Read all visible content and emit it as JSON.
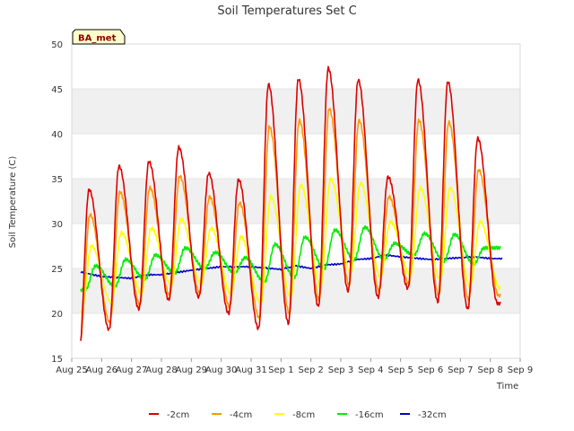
{
  "chart_data": {
    "type": "line",
    "title": "Soil Temperatures Set C",
    "xlabel": "Time",
    "ylabel": "Soil Temperature (C)",
    "ylim": [
      15,
      50
    ],
    "xlim": [
      "2015-08-25",
      "2015-09-09"
    ],
    "y_ticks": [
      15,
      20,
      25,
      30,
      35,
      40,
      45,
      50
    ],
    "x_ticks": [
      "Aug 25",
      "Aug 26",
      "Aug 27",
      "Aug 28",
      "Aug 29",
      "Aug 30",
      "Aug 31",
      "Sep 1",
      "Sep 2",
      "Sep 3",
      "Sep 4",
      "Sep 5",
      "Sep 6",
      "Sep 7",
      "Sep 8",
      "Sep 9"
    ],
    "badge": "BA_met",
    "grid": "horizontal bands",
    "legend_position": "bottom",
    "series": [
      {
        "name": "-2cm",
        "color": "#dd0000",
        "mins": [
          15.8,
          18.2,
          20.5,
          21.5,
          21.8,
          20.0,
          18.3,
          18.9,
          20.8,
          22.5,
          21.8,
          22.8,
          21.3,
          20.5,
          21.1
        ],
        "maxs": [
          33.8,
          36.4,
          36.9,
          38.5,
          35.6,
          34.9,
          45.5,
          46.1,
          47.3,
          46.0,
          35.2,
          46.0,
          45.8,
          39.5
        ]
      },
      {
        "name": "-4cm",
        "color": "#ff9900",
        "mins": [
          17.0,
          19.0,
          21.0,
          22.0,
          22.3,
          20.8,
          19.5,
          20.0,
          21.5,
          23.2,
          22.5,
          23.3,
          22.0,
          21.5,
          22.0
        ],
        "maxs": [
          31.0,
          33.5,
          34.0,
          35.3,
          33.0,
          32.3,
          40.8,
          41.5,
          42.8,
          41.5,
          33.0,
          41.5,
          41.3,
          36.0
        ]
      },
      {
        "name": "-8cm",
        "color": "#ffff00",
        "mins": [
          20.2,
          21.2,
          22.2,
          23.2,
          23.3,
          22.2,
          21.2,
          21.8,
          23.0,
          24.5,
          24.0,
          24.3,
          23.8,
          23.0,
          22.8
        ],
        "maxs": [
          27.5,
          29.0,
          29.5,
          30.5,
          29.5,
          28.5,
          33.0,
          34.3,
          35.0,
          34.5,
          30.2,
          34.0,
          34.0,
          30.2
        ]
      },
      {
        "name": "-16cm",
        "color": "#00ee00",
        "mins": [
          22.6,
          23.0,
          23.8,
          24.5,
          25.0,
          24.5,
          23.5,
          24.0,
          25.0,
          26.0,
          26.0,
          26.5,
          25.8,
          25.5
        ],
        "maxs": [
          25.3,
          26.0,
          26.5,
          27.3,
          26.8,
          26.2,
          27.7,
          28.5,
          29.3,
          29.6,
          27.8,
          28.9,
          28.8,
          27.3
        ]
      },
      {
        "name": "-32cm",
        "color": "#0000cc",
        "x_days": [
          0.3,
          1.0,
          2.0,
          2.5,
          3.0,
          4.0,
          5.0,
          6.0,
          7.0,
          7.5,
          8.0,
          8.5,
          9.0,
          9.5,
          10.0,
          10.5,
          11.0,
          12.0,
          13.0,
          13.5,
          14.0,
          14.4
        ],
        "values": [
          24.6,
          24.1,
          23.9,
          24.3,
          24.3,
          24.8,
          25.2,
          25.2,
          24.9,
          25.3,
          25.0,
          25.4,
          25.5,
          26.0,
          26.1,
          26.5,
          26.3,
          26.0,
          26.2,
          26.3,
          26.1,
          26.1
        ]
      }
    ]
  }
}
